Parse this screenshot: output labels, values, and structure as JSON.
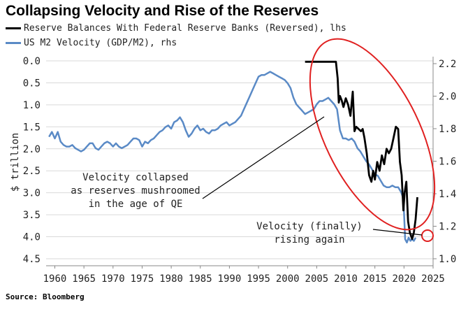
{
  "title": "Collapsing Velocity and Rise of the Reserves",
  "source": "Source: Bloomberg",
  "colors": {
    "reserves": "#000000",
    "velocity": "#5a8ac6",
    "highlight": "#e02020",
    "grid": "#d9d9d9"
  },
  "chart_data": {
    "type": "line",
    "xlim": [
      1958.5,
      2025
    ],
    "x_ticks": [
      "1960",
      "1965",
      "1970",
      "1975",
      "1980",
      "1985",
      "1990",
      "1995",
      "2000",
      "2005",
      "2010",
      "2015",
      "2020",
      "2025"
    ],
    "left_axis": {
      "label": "$ trillion",
      "reversed": true,
      "lim": [
        0.0,
        4.5
      ],
      "ticks": [
        "0.0",
        "0.5",
        "1.0",
        "1.5",
        "2.0",
        "2.5",
        "3.0",
        "3.5",
        "4.0",
        "4.5"
      ]
    },
    "right_axis": {
      "label": "",
      "lim": [
        1.0,
        2.25
      ],
      "ticks": [
        "1.0",
        "1.2",
        "1.4",
        "1.6",
        "1.8",
        "2.0",
        "2.2"
      ]
    },
    "grid": "horizontal",
    "legend_position": "top-left",
    "series": [
      {
        "name": "Reserve Balances With Federal Reserve Banks (Reversed), lhs",
        "axis": "left",
        "x": [
          2003,
          2008.3,
          2008.6,
          2008.8,
          2009.0,
          2009.3,
          2009.6,
          2010.0,
          2010.4,
          2010.8,
          2011.2,
          2011.5,
          2011.8,
          2012.2,
          2012.6,
          2012.9,
          2013.2,
          2013.6,
          2014.0,
          2014.4,
          2014.7,
          2015.0,
          2015.4,
          2015.8,
          2016.2,
          2016.6,
          2017.0,
          2017.4,
          2017.8,
          2018.2,
          2018.6,
          2019.0,
          2019.3,
          2019.6,
          2019.9,
          2020.1,
          2020.4,
          2020.7,
          2021.0,
          2021.4,
          2021.7,
          2022.0,
          2022.3
        ],
        "values": [
          0.02,
          0.02,
          0.4,
          0.95,
          0.8,
          0.9,
          1.05,
          0.85,
          1.0,
          1.25,
          0.7,
          1.6,
          1.5,
          1.55,
          1.6,
          1.55,
          1.75,
          2.1,
          2.6,
          2.75,
          2.5,
          2.7,
          2.3,
          2.5,
          2.15,
          2.35,
          2.0,
          2.1,
          2.0,
          1.75,
          1.5,
          1.55,
          2.3,
          2.6,
          3.4,
          3.0,
          2.75,
          3.65,
          3.9,
          4.05,
          3.9,
          3.6,
          3.1
        ]
      },
      {
        "name": "US M2 Velocity (GDP/M2), rhs",
        "axis": "right",
        "x": [
          1959.0,
          1959.5,
          1960.0,
          1960.5,
          1961.0,
          1961.5,
          1962.0,
          1962.5,
          1963.0,
          1963.5,
          1964.0,
          1964.5,
          1965.0,
          1965.5,
          1966.0,
          1966.5,
          1967.0,
          1967.5,
          1968.0,
          1968.5,
          1969.0,
          1969.5,
          1970.0,
          1970.5,
          1971.0,
          1971.5,
          1972.0,
          1972.5,
          1973.0,
          1973.5,
          1974.0,
          1974.5,
          1975.0,
          1975.5,
          1976.0,
          1976.5,
          1977.0,
          1977.5,
          1978.0,
          1978.5,
          1979.0,
          1979.5,
          1980.0,
          1980.5,
          1981.0,
          1981.5,
          1982.0,
          1982.5,
          1983.0,
          1983.5,
          1984.0,
          1984.5,
          1985.0,
          1985.5,
          1986.0,
          1986.5,
          1987.0,
          1987.5,
          1988.0,
          1988.5,
          1989.0,
          1989.5,
          1990.0,
          1990.5,
          1991.0,
          1991.5,
          1992.0,
          1992.5,
          1993.0,
          1993.5,
          1994.0,
          1994.5,
          1995.0,
          1995.5,
          1996.0,
          1996.5,
          1997.0,
          1997.5,
          1998.0,
          1998.5,
          1999.0,
          1999.5,
          2000.0,
          2000.5,
          2001.0,
          2001.5,
          2002.0,
          2002.5,
          2003.0,
          2003.5,
          2004.0,
          2004.5,
          2005.0,
          2005.5,
          2006.0,
          2006.5,
          2007.0,
          2007.5,
          2008.0,
          2008.5,
          2009.0,
          2009.5,
          2010.0,
          2010.5,
          2011.0,
          2011.5,
          2012.0,
          2012.5,
          2013.0,
          2013.5,
          2014.0,
          2014.5,
          2015.0,
          2015.5,
          2016.0,
          2016.5,
          2017.0,
          2017.5,
          2018.0,
          2018.5,
          2019.0,
          2019.5,
          2019.9,
          2020.2,
          2020.5,
          2020.8,
          2021.1,
          2021.4,
          2021.7,
          2022.0
        ],
        "values": [
          1.75,
          1.78,
          1.74,
          1.78,
          1.72,
          1.7,
          1.69,
          1.69,
          1.7,
          1.68,
          1.67,
          1.66,
          1.67,
          1.69,
          1.71,
          1.71,
          1.68,
          1.67,
          1.69,
          1.71,
          1.72,
          1.71,
          1.69,
          1.71,
          1.69,
          1.68,
          1.69,
          1.7,
          1.72,
          1.74,
          1.74,
          1.73,
          1.69,
          1.72,
          1.71,
          1.73,
          1.74,
          1.76,
          1.78,
          1.79,
          1.81,
          1.82,
          1.8,
          1.84,
          1.85,
          1.87,
          1.84,
          1.79,
          1.75,
          1.77,
          1.8,
          1.82,
          1.79,
          1.8,
          1.78,
          1.77,
          1.79,
          1.79,
          1.8,
          1.82,
          1.83,
          1.84,
          1.82,
          1.83,
          1.84,
          1.86,
          1.88,
          1.92,
          1.96,
          2.0,
          2.04,
          2.08,
          2.12,
          2.13,
          2.13,
          2.14,
          2.15,
          2.14,
          2.13,
          2.12,
          2.11,
          2.1,
          2.08,
          2.05,
          1.99,
          1.95,
          1.93,
          1.91,
          1.89,
          1.9,
          1.91,
          1.92,
          1.95,
          1.97,
          1.97,
          1.98,
          1.99,
          1.97,
          1.95,
          1.92,
          1.79,
          1.74,
          1.74,
          1.73,
          1.74,
          1.72,
          1.68,
          1.66,
          1.63,
          1.6,
          1.58,
          1.55,
          1.52,
          1.51,
          1.48,
          1.45,
          1.44,
          1.44,
          1.45,
          1.44,
          1.44,
          1.41,
          1.37,
          1.12,
          1.1,
          1.13,
          1.11,
          1.12,
          1.11,
          1.13
        ]
      }
    ],
    "annotations": [
      {
        "lines": [
          "Velocity collapsed",
          "as reserves mushroomed",
          "in the age of QE"
        ]
      },
      {
        "lines": [
          "Velocity (finally)",
          "rising again"
        ]
      }
    ]
  }
}
